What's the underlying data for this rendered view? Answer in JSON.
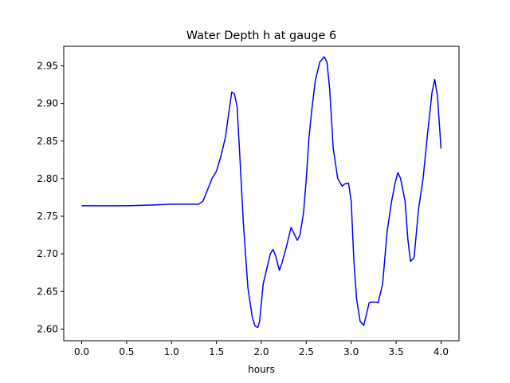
{
  "chart_data": {
    "type": "line",
    "title": "Water Depth h at gauge 6",
    "xlabel": "hours",
    "ylabel": "",
    "xlim": [
      -0.2,
      4.2
    ],
    "ylim": [
      2.5845,
      2.976
    ],
    "xticks": [
      0.0,
      0.5,
      1.0,
      1.5,
      2.0,
      2.5,
      3.0,
      3.5,
      4.0
    ],
    "xtick_labels": [
      "0.0",
      "0.5",
      "1.0",
      "1.5",
      "2.0",
      "2.5",
      "3.0",
      "3.5",
      "4.0"
    ],
    "yticks": [
      2.6,
      2.65,
      2.7,
      2.75,
      2.8,
      2.85,
      2.9,
      2.95
    ],
    "ytick_labels": [
      "2.60",
      "2.65",
      "2.70",
      "2.75",
      "2.80",
      "2.85",
      "2.90",
      "2.95"
    ],
    "grid": false,
    "series": [
      {
        "color": "#0000ff",
        "x": [
          0.0,
          0.2,
          0.5,
          0.8,
          1.0,
          1.2,
          1.3,
          1.35,
          1.4,
          1.45,
          1.5,
          1.55,
          1.6,
          1.64,
          1.67,
          1.7,
          1.73,
          1.76,
          1.8,
          1.85,
          1.9,
          1.93,
          1.96,
          1.98,
          2.0,
          2.02,
          2.05,
          2.1,
          2.13,
          2.16,
          2.2,
          2.23,
          2.28,
          2.33,
          2.36,
          2.4,
          2.43,
          2.47,
          2.5,
          2.53,
          2.56,
          2.6,
          2.65,
          2.7,
          2.73,
          2.76,
          2.8,
          2.85,
          2.9,
          2.93,
          2.97,
          3.0,
          3.03,
          3.06,
          3.1,
          3.14,
          3.17,
          3.2,
          3.25,
          3.3,
          3.35,
          3.4,
          3.45,
          3.49,
          3.52,
          3.55,
          3.6,
          3.63,
          3.66,
          3.7,
          3.75,
          3.8,
          3.85,
          3.9,
          3.93,
          3.96,
          4.0
        ],
        "y": [
          2.764,
          2.764,
          2.764,
          2.765,
          2.766,
          2.766,
          2.766,
          2.77,
          2.785,
          2.8,
          2.81,
          2.83,
          2.855,
          2.89,
          2.915,
          2.913,
          2.895,
          2.83,
          2.74,
          2.655,
          2.615,
          2.604,
          2.602,
          2.61,
          2.635,
          2.66,
          2.675,
          2.7,
          2.706,
          2.697,
          2.678,
          2.688,
          2.71,
          2.735,
          2.728,
          2.718,
          2.725,
          2.755,
          2.8,
          2.855,
          2.89,
          2.93,
          2.955,
          2.962,
          2.955,
          2.92,
          2.84,
          2.8,
          2.79,
          2.793,
          2.794,
          2.77,
          2.69,
          2.64,
          2.61,
          2.605,
          2.62,
          2.635,
          2.636,
          2.635,
          2.66,
          2.73,
          2.77,
          2.795,
          2.808,
          2.8,
          2.77,
          2.72,
          2.69,
          2.695,
          2.76,
          2.8,
          2.86,
          2.915,
          2.932,
          2.91,
          2.84
        ]
      }
    ]
  }
}
